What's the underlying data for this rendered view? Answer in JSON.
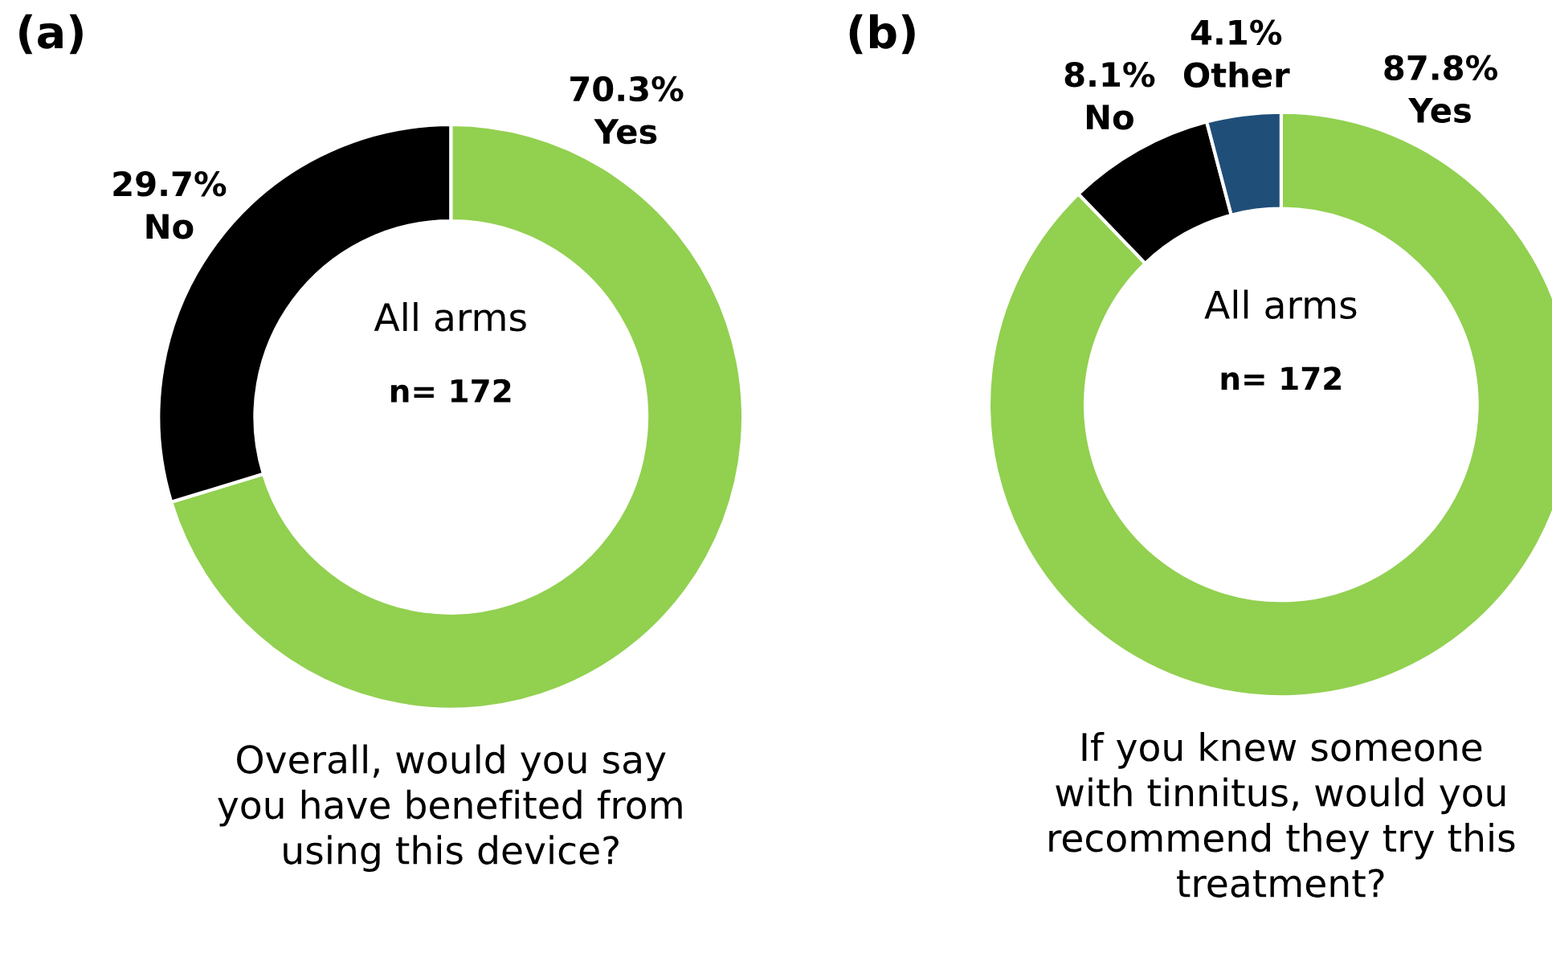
{
  "chart_data": [
    {
      "type": "donut",
      "title": "(a)",
      "categories": [
        "Yes",
        "No"
      ],
      "values": [
        70.3,
        29.7
      ],
      "colors": [
        "#92d050",
        "#000000"
      ],
      "value_labels": [
        "70.3%",
        "29.7%"
      ],
      "annotations": [
        "All arms",
        "n= 172",
        "Overall, would you say\nyou have benefited from\nusing this device?"
      ]
    },
    {
      "type": "donut",
      "title": "(b)",
      "categories": [
        "Yes",
        "No",
        "Other"
      ],
      "values": [
        87.8,
        8.1,
        4.1
      ],
      "colors": [
        "#92d050",
        "#000000",
        "#1f4e79"
      ],
      "value_labels": [
        "87.8%",
        "8.1%",
        "4.1%"
      ],
      "annotations": [
        "All arms",
        "n= 172",
        "If you knew someone\nwith tinnitus, would you\nrecommend they try this\ntreatment?"
      ]
    }
  ]
}
